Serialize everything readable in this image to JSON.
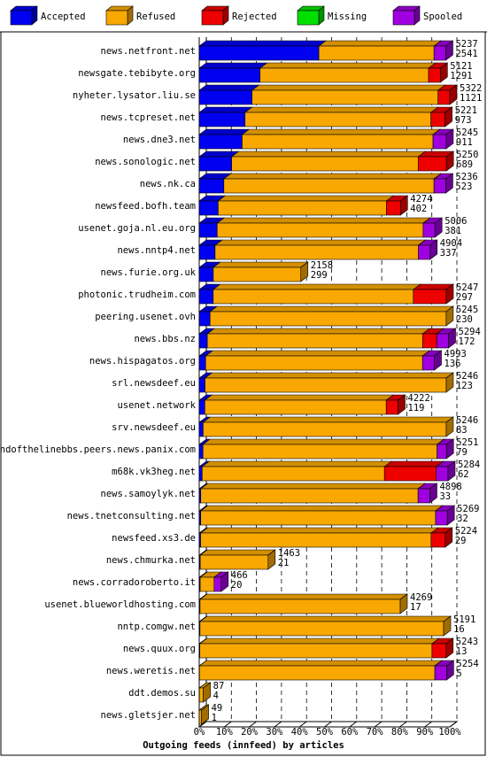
{
  "chart_data": {
    "type": "bar3d-stacked-horizontal",
    "title": "Outgoing feeds (innfeed) by articles",
    "categories": [
      "news.netfront.net",
      "newsgate.tebibyte.org",
      "nyheter.lysator.liu.se",
      "news.tcpreset.net",
      "news.dne3.net",
      "news.sonologic.net",
      "news.nk.ca",
      "newsfeed.bofh.team",
      "usenet.goja.nl.eu.org",
      "news.nntp4.net",
      "news.furie.org.uk",
      "photonic.trudheim.com",
      "peering.usenet.ovh",
      "news.bbs.nz",
      "news.hispagatos.org",
      "srl.newsdeef.eu",
      "usenet.network",
      "srv.newsdeef.eu",
      "endofthelinebbs.peers.news.panix.com",
      "m68k.vk3heg.net",
      "news.samoylyk.net",
      "news.tnetconsulting.net",
      "newsfeed.xs3.de",
      "news.chmurka.net",
      "news.corradoroberto.it",
      "usenet.blueworldhosting.com",
      "nntp.comgw.net",
      "news.quux.org",
      "news.weretis.net",
      "ddt.demos.su",
      "news.gletsjer.net"
    ],
    "series": [
      {
        "name": "Accepted",
        "color": "#0000f0",
        "values": [
          2541,
          1291,
          1121,
          973,
          911,
          689,
          523,
          402,
          381,
          337,
          299,
          297,
          230,
          172,
          136,
          123,
          119,
          83,
          79,
          62,
          33,
          32,
          29,
          21,
          20,
          17,
          16,
          13,
          5,
          4,
          1
        ]
      },
      {
        "name": "Refused",
        "color": "#f8a800",
        "values": [
          2446,
          3580,
          3951,
          3948,
          4054,
          3961,
          4463,
          3572,
          4375,
          4317,
          1859,
          4250,
          5015,
          4572,
          4607,
          5123,
          3853,
          5163,
          4972,
          3872,
          4615,
          4987,
          4895,
          1442,
          296,
          4252,
          5175,
          4930,
          4999,
          83,
          48
        ]
      },
      {
        "name": "Rejected",
        "color": "#ee0000",
        "values": [
          0,
          250,
          250,
          300,
          0,
          600,
          0,
          300,
          0,
          0,
          0,
          700,
          0,
          300,
          0,
          0,
          250,
          0,
          0,
          1100,
          0,
          0,
          300,
          0,
          0,
          0,
          0,
          300,
          0,
          0,
          0
        ]
      },
      {
        "name": "Missing",
        "color": "#00e000",
        "values": [
          0,
          0,
          0,
          0,
          0,
          0,
          0,
          0,
          0,
          0,
          0,
          0,
          0,
          0,
          0,
          0,
          0,
          0,
          0,
          0,
          0,
          0,
          0,
          0,
          0,
          0,
          0,
          0,
          0,
          0,
          0
        ]
      },
      {
        "name": "Spooled",
        "color": "#a000e0",
        "values": [
          250,
          0,
          0,
          0,
          280,
          0,
          250,
          0,
          250,
          250,
          0,
          0,
          0,
          250,
          250,
          0,
          0,
          0,
          200,
          250,
          250,
          250,
          0,
          0,
          150,
          0,
          0,
          0,
          250,
          0,
          0
        ]
      }
    ],
    "totals": [
      5237,
      5121,
      5322,
      5221,
      5245,
      5250,
      5236,
      4274,
      5006,
      4904,
      2158,
      5247,
      5245,
      5294,
      4993,
      5246,
      4222,
      5246,
      5251,
      5284,
      4898,
      5269,
      5224,
      1463,
      466,
      4269,
      5191,
      5243,
      5254,
      87,
      49
    ],
    "xlim": [
      0,
      5322
    ],
    "xticks": [
      {
        "value": 0,
        "label": "0%"
      },
      {
        "value": 532.2,
        "label": "10%"
      },
      {
        "value": 1064.4,
        "label": "20%"
      },
      {
        "value": 1596.6,
        "label": "30%"
      },
      {
        "value": 2128.8,
        "label": "40%"
      },
      {
        "value": 2661,
        "label": "50%"
      },
      {
        "value": 3193.2,
        "label": "60%"
      },
      {
        "value": 3725.4,
        "label": "70%"
      },
      {
        "value": 4257.6,
        "label": "80%"
      },
      {
        "value": 4789.8,
        "label": "90%"
      },
      {
        "value": 5322,
        "label": "100%"
      }
    ],
    "grid": true
  }
}
